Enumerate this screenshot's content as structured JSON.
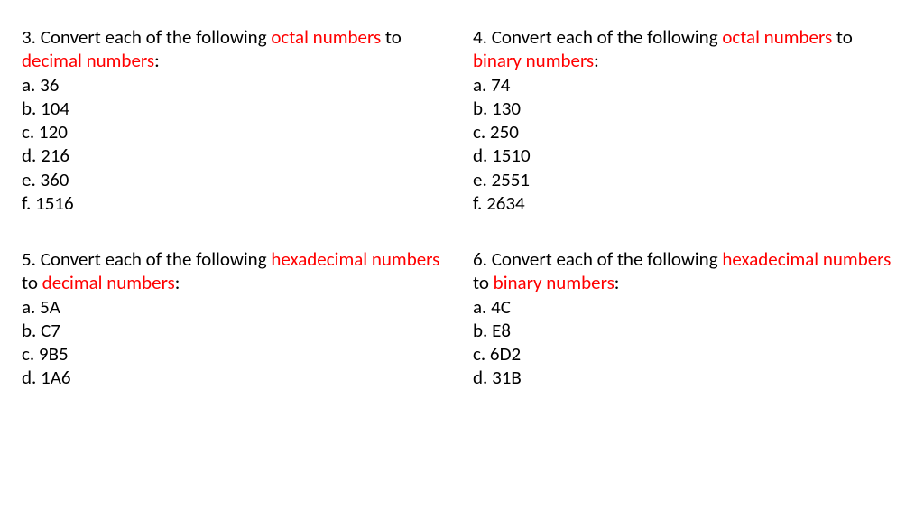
{
  "colors": {
    "text": "#000000",
    "highlight": "#ff0000",
    "background": "#ffffff"
  },
  "typography": {
    "font_family": "Calibri, Arial, sans-serif",
    "font_size_pt": 16,
    "line_height": 1.25
  },
  "q3": {
    "number": "3.",
    "pre": " Convert each of the following ",
    "h1": "octal numbers",
    "mid": " to ",
    "h2": "decimal numbers",
    "post": ":",
    "a": "a. 36",
    "b": "b. 104",
    "c": "c. 120",
    "d": "d. 216",
    "e": "e. 360",
    "f": "f. 1516"
  },
  "q4": {
    "number": "4.",
    "pre": " Convert each of the following ",
    "h1": "octal numbers",
    "mid": " to ",
    "h2": "binary numbers",
    "post": ":",
    "a": "a. 74",
    "b": "b. 130",
    "c": "c. 250",
    "d": "d. 1510",
    "e": "e. 2551",
    "f": "f. 2634"
  },
  "q5": {
    "number": "5.",
    "pre": " Convert each of the following ",
    "h1": "hexadecimal numbers",
    "mid": " to ",
    "h2": "decimal numbers",
    "post": ":",
    "a": "a. 5A",
    "b": "b. C7",
    "c": "c. 9B5",
    "d": "d. 1A6"
  },
  "q6": {
    "number": "6.",
    "pre": " Convert each of the following ",
    "h1": "hexadecimal numbers",
    "mid": " to ",
    "h2": "binary numbers",
    "post": ":",
    "a": "a. 4C",
    "b": "b. E8",
    "c": "c. 6D2",
    "d": "d. 31B"
  }
}
